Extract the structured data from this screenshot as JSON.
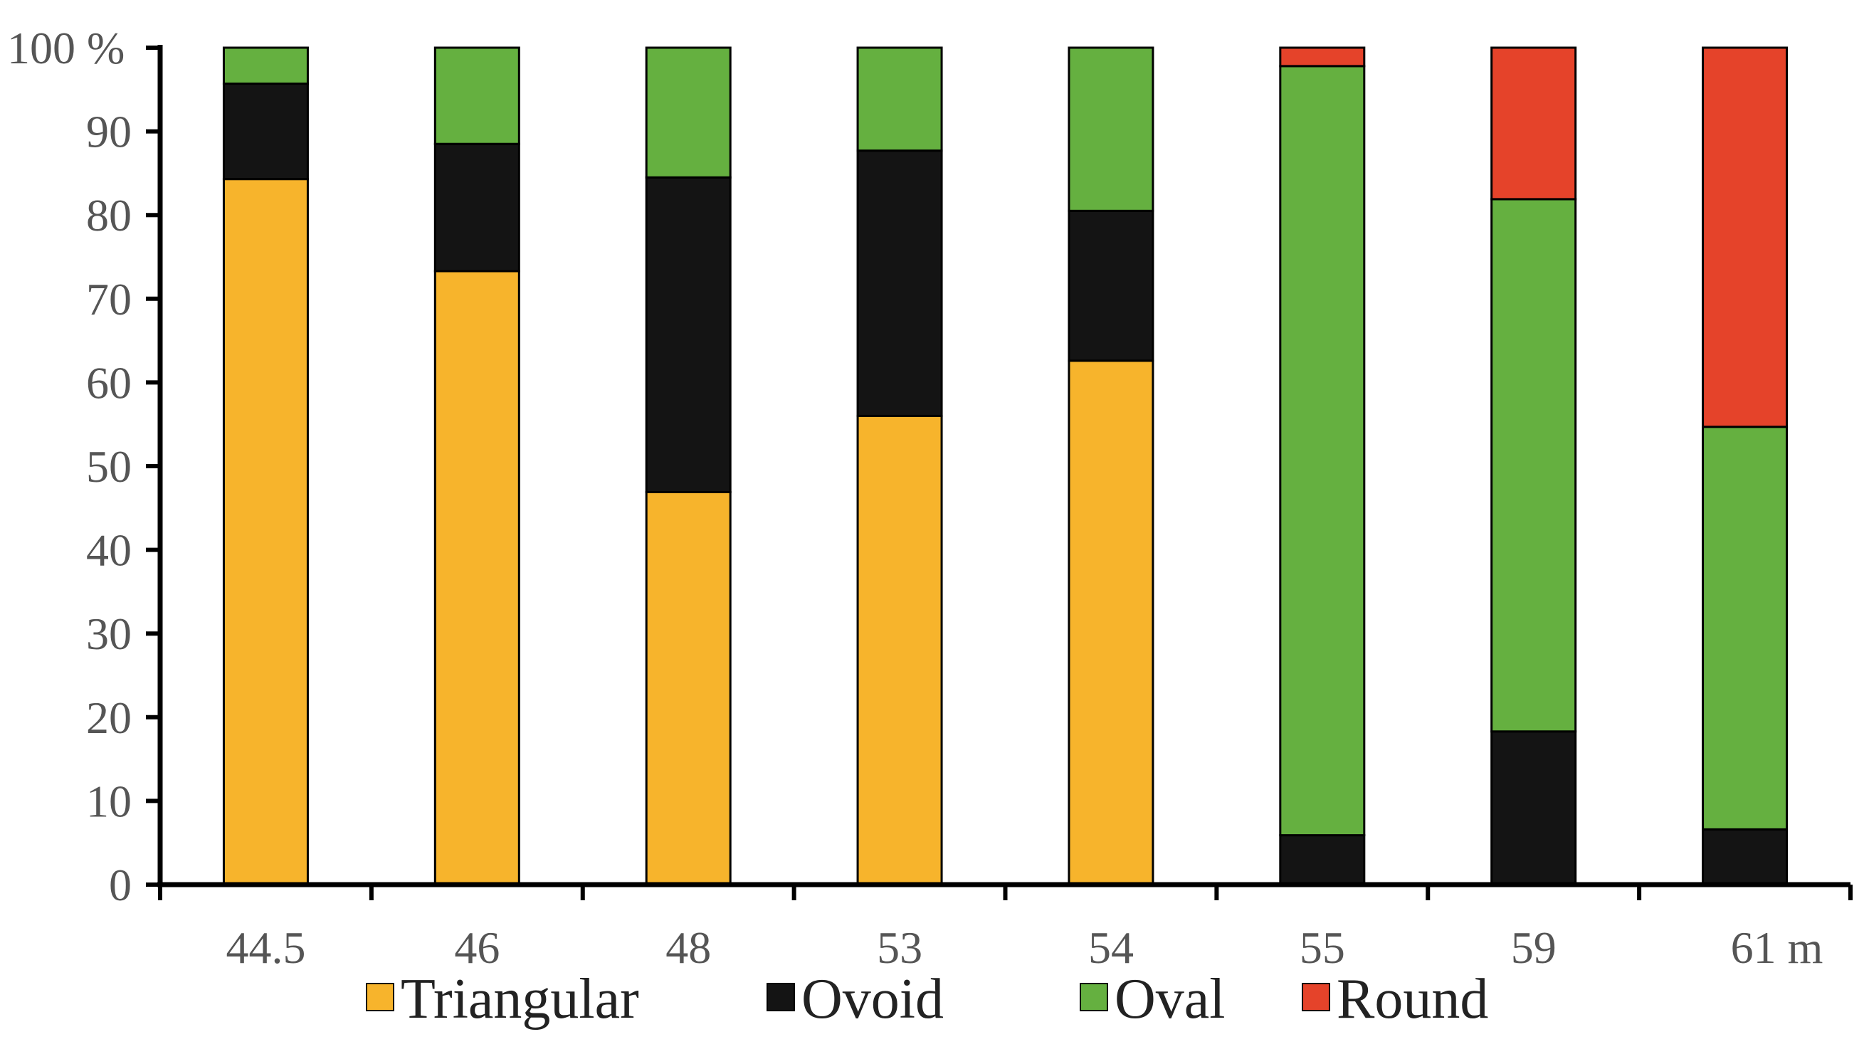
{
  "chart_data": {
    "type": "bar",
    "stacked": true,
    "title": "",
    "xlabel": "",
    "ylabel": "",
    "ylim": [
      0,
      100
    ],
    "y_ticks": [
      "0",
      "10",
      "20",
      "30",
      "40",
      "50",
      "60",
      "70",
      "80",
      "90",
      "100 %"
    ],
    "categories": [
      "44.5",
      "46",
      "48",
      "53",
      "54",
      "55",
      "59",
      "61 m"
    ],
    "series": [
      {
        "name": "Triangular",
        "color": "#F7B42C",
        "values": [
          84.3,
          73.3,
          46.9,
          56.0,
          62.6,
          0,
          0,
          0
        ]
      },
      {
        "name": "Ovoid",
        "color": "#141414",
        "values": [
          11.4,
          15.2,
          37.6,
          31.7,
          17.9,
          5.9,
          18.3,
          6.6
        ]
      },
      {
        "name": "Oval",
        "color": "#65B040",
        "values": [
          4.3,
          11.5,
          15.5,
          12.3,
          19.5,
          91.9,
          63.6,
          48.1
        ]
      },
      {
        "name": "Round",
        "color": "#E5432A",
        "values": [
          0,
          0,
          0,
          0,
          0,
          2.2,
          18.1,
          45.3
        ]
      }
    ],
    "legend_position": "bottom",
    "grid": false
  }
}
